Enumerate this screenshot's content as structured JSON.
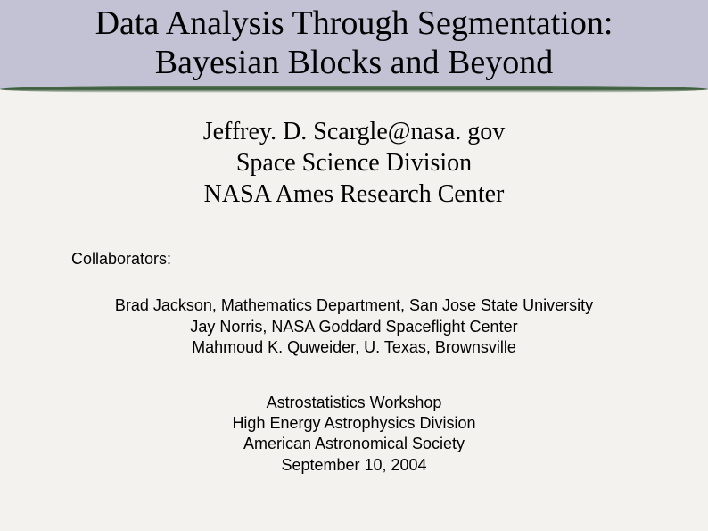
{
  "colors": {
    "page_background": "#f4f2ee",
    "title_band_background": "#c2c2d4",
    "divider_gradient_dark": "#3a5a3a",
    "divider_gradient_light": "#5a7a5a",
    "text": "#000000"
  },
  "typography": {
    "title_font": "Times New Roman",
    "title_fontsize_pt": 29,
    "author_font": "Times New Roman",
    "author_fontsize_pt": 21,
    "body_font": "Arial",
    "body_fontsize_pt": 14
  },
  "title": {
    "line1": "Data Analysis Through Segmentation:",
    "line2": "Bayesian Blocks and Beyond"
  },
  "author": {
    "email": "Jeffrey. D. Scargle@nasa. gov",
    "division": "Space Science Division",
    "center": "NASA Ames Research Center"
  },
  "collaborators": {
    "label": "Collaborators:",
    "people": [
      "Brad Jackson, Mathematics Department, San Jose State University",
      "Jay Norris, NASA Goddard Spaceflight Center",
      "Mahmoud K. Quweider, U. Texas, Brownsville"
    ]
  },
  "venue": {
    "workshop": "Astrostatistics Workshop",
    "division": "High Energy Astrophysics Division",
    "society": "American Astronomical Society",
    "date": "September 10, 2004"
  }
}
